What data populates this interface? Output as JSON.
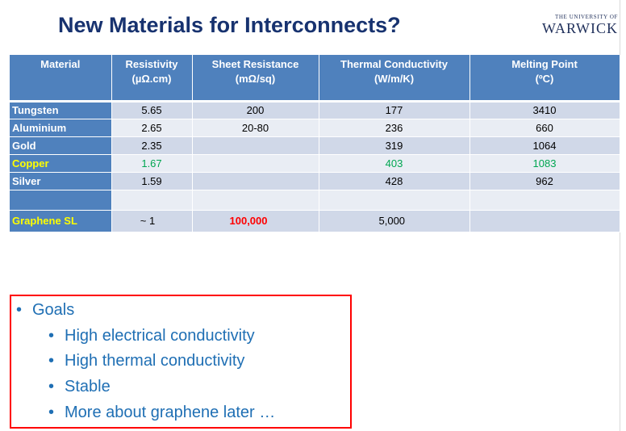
{
  "slide": {
    "title": "New Materials for Interconnects?",
    "logo": {
      "small": "THE UNIVERSITY OF",
      "big": "WARWICK"
    }
  },
  "table": {
    "headers": [
      {
        "line1": "Material",
        "line2": ""
      },
      {
        "line1": "Resistivity",
        "line2": "(µΩ.cm)"
      },
      {
        "line1": "Sheet Resistance",
        "line2": "(mΩ/sq)"
      },
      {
        "line1": "Thermal Conductivity",
        "line2": "(W/m/K)"
      },
      {
        "line1": "Melting Point",
        "line2": "(ºC)"
      }
    ],
    "rows": [
      {
        "material": "Tungsten",
        "resistivity": "5.65",
        "sheet_resistance": "200",
        "thermal_conductivity": "177",
        "melting_point": "3410"
      },
      {
        "material": "Aluminium",
        "resistivity": "2.65",
        "sheet_resistance": "20-80",
        "thermal_conductivity": "236",
        "melting_point": "660"
      },
      {
        "material": "Gold",
        "resistivity": "2.35",
        "sheet_resistance": "",
        "thermal_conductivity": "319",
        "melting_point": "1064"
      },
      {
        "material": "Copper",
        "resistivity": "1.67",
        "sheet_resistance": "",
        "thermal_conductivity": "403",
        "melting_point": "1083"
      },
      {
        "material": "Silver",
        "resistivity": "1.59",
        "sheet_resistance": "",
        "thermal_conductivity": "428",
        "melting_point": "962"
      },
      {
        "material": "",
        "resistivity": "",
        "sheet_resistance": "",
        "thermal_conductivity": "",
        "melting_point": ""
      },
      {
        "material": "Graphene SL",
        "resistivity": "~ 1",
        "sheet_resistance": "100,000",
        "thermal_conductivity": "5,000",
        "melting_point": ""
      }
    ],
    "colors": {
      "header_bg": "#4f81bd",
      "row_dark": "#d0d8e8",
      "row_light": "#e9edf4",
      "highlight_material": "#ffff00",
      "highlight_copper_values": "#00a651",
      "highlight_sheet_resistance": "#ff0000"
    }
  },
  "goals": {
    "heading": "Goals",
    "items": [
      "High electrical conductivity",
      "High thermal conductivity",
      "Stable",
      "More about graphene later …"
    ],
    "colors": {
      "text": "#1f6fb4",
      "border": "#ff0000"
    }
  }
}
